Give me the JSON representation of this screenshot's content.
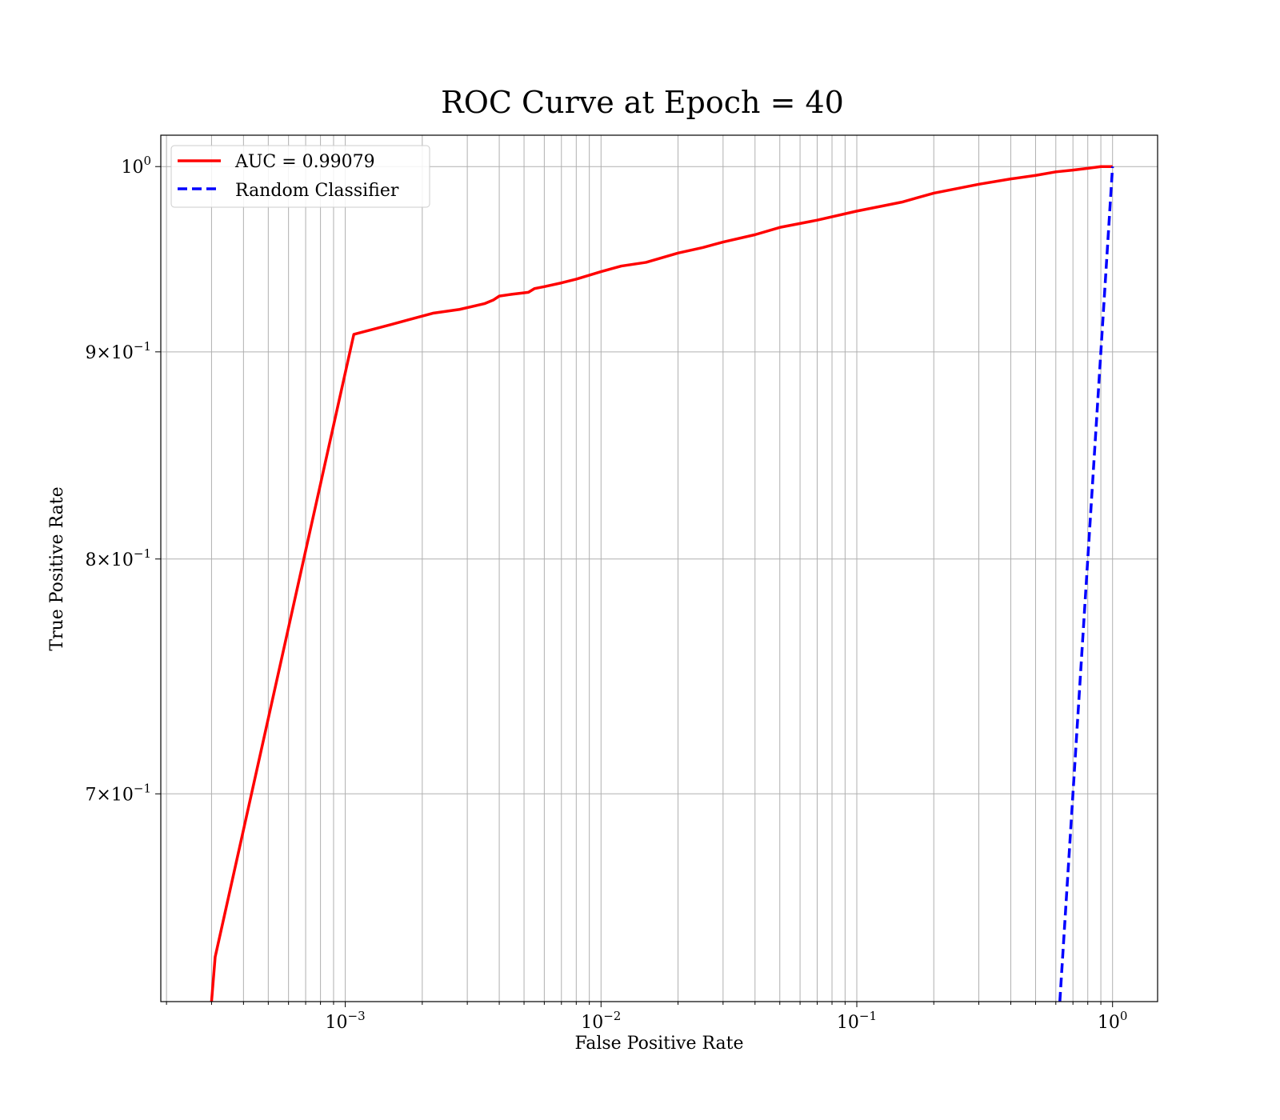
{
  "chart_data": {
    "type": "line",
    "title": "ROC Curve at Epoch = 40",
    "xlabel": "False Positive Rate",
    "ylabel": "True Positive Rate",
    "x_scale": "log",
    "y_scale": "log",
    "xlim": [
      0.00019,
      1.5
    ],
    "ylim": [
      0.622,
      1.018
    ],
    "grid": "major and minor",
    "legend_position": "top-left",
    "x_major_ticks": [
      {
        "value": 0.001,
        "base": "10",
        "exp": "−3"
      },
      {
        "value": 0.01,
        "base": "10",
        "exp": "−2"
      },
      {
        "value": 0.1,
        "base": "10",
        "exp": "−1"
      },
      {
        "value": 1,
        "base": "10",
        "exp": "0"
      }
    ],
    "y_ticks": [
      {
        "value": 1.0,
        "mantissa": "",
        "base": "10",
        "exp": "0"
      },
      {
        "value": 0.9,
        "mantissa": "9×",
        "base": "10",
        "exp": "−1"
      },
      {
        "value": 0.8,
        "mantissa": "8×",
        "base": "10",
        "exp": "−1"
      },
      {
        "value": 0.7,
        "mantissa": "7×",
        "base": "10",
        "exp": "−1"
      }
    ],
    "series": [
      {
        "name": "AUC = 0.99079",
        "color": "#ff0000",
        "style": "solid",
        "x": [
          0.0003,
          0.00031,
          0.00108,
          0.0015,
          0.0022,
          0.0028,
          0.0035,
          0.0038,
          0.004,
          0.0045,
          0.0052,
          0.0055,
          0.006,
          0.007,
          0.008,
          0.01,
          0.012,
          0.015,
          0.02,
          0.025,
          0.03,
          0.04,
          0.05,
          0.07,
          0.1,
          0.15,
          0.2,
          0.3,
          0.4,
          0.5,
          0.6,
          0.7,
          0.8,
          0.9,
          1.0
        ],
        "y": [
          0.622,
          0.638,
          0.909,
          0.914,
          0.92,
          0.922,
          0.925,
          0.927,
          0.929,
          0.93,
          0.931,
          0.933,
          0.934,
          0.936,
          0.938,
          0.942,
          0.945,
          0.947,
          0.952,
          0.955,
          0.958,
          0.962,
          0.966,
          0.97,
          0.975,
          0.98,
          0.985,
          0.99,
          0.993,
          0.995,
          0.997,
          0.998,
          0.999,
          1.0,
          1.0
        ]
      },
      {
        "name": "Random Classifier",
        "color": "#0000ff",
        "style": "dashed",
        "x": [
          0.622,
          0.7,
          0.8,
          0.9,
          1.0
        ],
        "y": [
          0.622,
          0.7,
          0.8,
          0.9,
          1.0
        ]
      }
    ]
  }
}
